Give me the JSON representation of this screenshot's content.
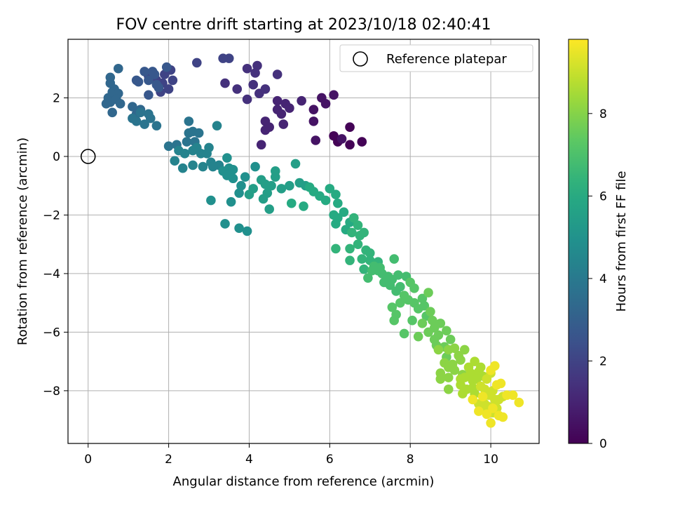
{
  "colormap": "viridis",
  "chart_data": {
    "type": "scatter",
    "title": "FOV centre drift starting at 2023/10/18 02:40:41",
    "xlabel": "Angular distance from reference (arcmin)",
    "ylabel": "Rotation from reference (arcmin)",
    "xlim": [
      -0.5,
      11.2
    ],
    "ylim": [
      -9.8,
      4.0
    ],
    "xticks": [
      0,
      2,
      4,
      6,
      8,
      10
    ],
    "yticks": [
      -8,
      -6,
      -4,
      -2,
      0,
      2
    ],
    "grid": true,
    "legend": {
      "position": "top-right",
      "entries": [
        "Reference platepar"
      ]
    },
    "reference_point": {
      "label": "Reference platepar",
      "x": 0,
      "y": 0
    },
    "colorbar": {
      "label": "Hours from first FF file",
      "range": [
        0,
        9.8
      ],
      "ticks": [
        0,
        2,
        4,
        6,
        8
      ]
    },
    "series": [
      {
        "c": 0.05,
        "points": [
          [
            6.5,
            1.0
          ],
          [
            6.8,
            0.5
          ],
          [
            6.5,
            0.4
          ],
          [
            6.2,
            0.5
          ],
          [
            6.1,
            0.7
          ]
        ]
      },
      {
        "c": 0.5,
        "points": [
          [
            6.1,
            2.1
          ],
          [
            5.8,
            2.0
          ],
          [
            5.6,
            1.6
          ],
          [
            5.6,
            1.2
          ],
          [
            5.9,
            1.8
          ],
          [
            5.65,
            0.55
          ],
          [
            6.3,
            0.6
          ]
        ]
      },
      {
        "c": 1.0,
        "points": [
          [
            4.7,
            1.9
          ],
          [
            4.9,
            1.8
          ],
          [
            4.7,
            1.6
          ],
          [
            4.8,
            1.45
          ],
          [
            5.0,
            1.65
          ],
          [
            5.3,
            1.9
          ],
          [
            4.85,
            1.1
          ],
          [
            4.4,
            1.2
          ],
          [
            4.5,
            1.0
          ],
          [
            4.4,
            0.9
          ],
          [
            4.3,
            0.4
          ]
        ]
      },
      {
        "c": 1.4,
        "points": [
          [
            4.2,
            3.1
          ],
          [
            3.95,
            3.0
          ],
          [
            4.15,
            2.85
          ],
          [
            4.7,
            2.8
          ],
          [
            4.1,
            2.45
          ],
          [
            4.25,
            2.15
          ],
          [
            4.4,
            2.3
          ],
          [
            3.95,
            1.95
          ],
          [
            3.4,
            2.5
          ],
          [
            3.7,
            2.3
          ]
        ]
      },
      {
        "c": 2.0,
        "points": [
          [
            3.5,
            3.35
          ],
          [
            3.35,
            3.35
          ],
          [
            2.7,
            3.2
          ],
          [
            1.9,
            2.8
          ],
          [
            2.05,
            2.95
          ],
          [
            2.1,
            2.6
          ],
          [
            1.85,
            2.5
          ],
          [
            2.0,
            2.3
          ],
          [
            1.8,
            2.2
          ],
          [
            1.7,
            2.6
          ],
          [
            1.5,
            2.75
          ]
        ]
      },
      {
        "c": 2.7,
        "points": [
          [
            1.4,
            2.9
          ],
          [
            1.6,
            2.9
          ],
          [
            1.5,
            2.6
          ],
          [
            1.7,
            2.45
          ],
          [
            1.2,
            2.6
          ],
          [
            1.25,
            2.55
          ],
          [
            1.5,
            2.1
          ],
          [
            1.75,
            2.35
          ],
          [
            1.65,
            2.8
          ],
          [
            1.95,
            3.05
          ]
        ]
      },
      {
        "c": 3.3,
        "points": [
          [
            0.55,
            2.7
          ],
          [
            0.75,
            3.0
          ],
          [
            0.55,
            2.5
          ],
          [
            0.65,
            2.3
          ],
          [
            0.5,
            2.0
          ],
          [
            0.6,
            2.2
          ],
          [
            0.75,
            2.15
          ],
          [
            0.55,
            1.85
          ],
          [
            0.45,
            1.8
          ],
          [
            0.7,
            1.95
          ],
          [
            0.8,
            1.8
          ],
          [
            0.6,
            1.5
          ],
          [
            1.1,
            1.7
          ],
          [
            1.3,
            1.6
          ],
          [
            1.2,
            1.45
          ]
        ]
      },
      {
        "c": 3.8,
        "points": [
          [
            1.1,
            1.3
          ],
          [
            1.2,
            1.2
          ],
          [
            1.4,
            1.1
          ],
          [
            1.5,
            1.45
          ],
          [
            1.7,
            1.05
          ],
          [
            1.55,
            1.3
          ],
          [
            1.3,
            1.5
          ],
          [
            2.5,
            1.2
          ],
          [
            2.5,
            0.8
          ],
          [
            2.6,
            0.85
          ],
          [
            2.75,
            0.8
          ],
          [
            2.65,
            0.5
          ],
          [
            2.45,
            0.5
          ],
          [
            2.2,
            0.4
          ],
          [
            2.0,
            0.35
          ]
        ]
      },
      {
        "c": 4.4,
        "points": [
          [
            2.25,
            0.2
          ],
          [
            2.4,
            0.1
          ],
          [
            2.6,
            0.2
          ],
          [
            2.8,
            0.1
          ],
          [
            2.95,
            0.1
          ],
          [
            2.15,
            -0.15
          ],
          [
            2.35,
            -0.4
          ],
          [
            2.6,
            -0.3
          ],
          [
            2.85,
            -0.35
          ],
          [
            3.05,
            -0.2
          ],
          [
            3.25,
            -0.3
          ],
          [
            3.1,
            -0.35
          ],
          [
            3.2,
            1.05
          ],
          [
            2.7,
            0.3
          ],
          [
            3.0,
            0.3
          ]
        ]
      },
      {
        "c": 4.9,
        "points": [
          [
            3.45,
            -0.05
          ],
          [
            3.5,
            -0.4
          ],
          [
            3.35,
            -0.5
          ],
          [
            3.45,
            -0.65
          ],
          [
            3.6,
            -0.45
          ],
          [
            3.6,
            -0.75
          ],
          [
            3.9,
            -0.7
          ],
          [
            3.8,
            -1.0
          ],
          [
            3.75,
            -1.25
          ],
          [
            3.05,
            -1.5
          ],
          [
            3.55,
            -1.55
          ],
          [
            3.4,
            -2.3
          ],
          [
            3.75,
            -2.45
          ],
          [
            3.95,
            -2.55
          ],
          [
            4.15,
            -0.35
          ]
        ]
      },
      {
        "c": 5.5,
        "points": [
          [
            4.3,
            -0.8
          ],
          [
            4.4,
            -0.95
          ],
          [
            4.55,
            -1.0
          ],
          [
            4.65,
            -0.7
          ],
          [
            4.45,
            -1.25
          ],
          [
            4.35,
            -1.45
          ],
          [
            4.5,
            -1.8
          ],
          [
            4.1,
            -1.1
          ],
          [
            4.0,
            -1.3
          ],
          [
            4.8,
            -1.1
          ],
          [
            4.65,
            -0.5
          ],
          [
            5.0,
            -1.0
          ],
          [
            5.15,
            -0.25
          ],
          [
            5.25,
            -0.9
          ],
          [
            5.4,
            -1.0
          ]
        ]
      },
      {
        "c": 6.0,
        "points": [
          [
            5.5,
            -1.05
          ],
          [
            5.6,
            -1.2
          ],
          [
            5.75,
            -1.35
          ],
          [
            5.9,
            -1.5
          ],
          [
            6.0,
            -1.1
          ],
          [
            6.15,
            -1.3
          ],
          [
            5.35,
            -1.7
          ],
          [
            5.05,
            -1.6
          ],
          [
            6.2,
            -1.6
          ],
          [
            6.1,
            -2.0
          ],
          [
            6.2,
            -2.1
          ],
          [
            6.35,
            -1.9
          ],
          [
            6.5,
            -2.25
          ],
          [
            6.4,
            -2.5
          ],
          [
            6.15,
            -2.3
          ]
        ]
      },
      {
        "c": 6.4,
        "points": [
          [
            6.6,
            -2.1
          ],
          [
            6.7,
            -2.35
          ],
          [
            6.55,
            -2.6
          ],
          [
            6.75,
            -2.7
          ],
          [
            6.85,
            -2.6
          ],
          [
            6.7,
            -3.0
          ],
          [
            6.5,
            -3.15
          ],
          [
            6.15,
            -3.15
          ],
          [
            6.9,
            -3.2
          ],
          [
            6.8,
            -3.5
          ],
          [
            7.0,
            -3.3
          ],
          [
            7.0,
            -3.55
          ],
          [
            6.5,
            -3.55
          ],
          [
            6.85,
            -3.85
          ],
          [
            7.2,
            -3.6
          ]
        ]
      },
      {
        "c": 6.8,
        "points": [
          [
            7.1,
            -3.75
          ],
          [
            7.2,
            -3.9
          ],
          [
            7.3,
            -4.0
          ],
          [
            6.95,
            -4.15
          ],
          [
            7.05,
            -3.9
          ],
          [
            7.25,
            -3.8
          ],
          [
            7.45,
            -4.1
          ],
          [
            7.35,
            -4.3
          ],
          [
            7.55,
            -4.2
          ],
          [
            7.6,
            -3.5
          ],
          [
            7.7,
            -4.05
          ],
          [
            7.5,
            -4.4
          ],
          [
            7.65,
            -4.6
          ],
          [
            7.75,
            -4.45
          ],
          [
            7.9,
            -4.1
          ]
        ]
      },
      {
        "c": 7.2,
        "points": [
          [
            8.0,
            -4.3
          ],
          [
            8.1,
            -4.5
          ],
          [
            7.85,
            -4.75
          ],
          [
            7.95,
            -4.9
          ],
          [
            7.55,
            -5.15
          ],
          [
            7.75,
            -5.0
          ],
          [
            7.65,
            -5.4
          ],
          [
            8.1,
            -5.0
          ],
          [
            8.2,
            -5.2
          ],
          [
            8.3,
            -4.85
          ],
          [
            8.35,
            -5.1
          ],
          [
            8.4,
            -5.45
          ],
          [
            8.05,
            -5.6
          ],
          [
            7.6,
            -5.6
          ],
          [
            7.85,
            -6.05
          ]
        ]
      },
      {
        "c": 7.6,
        "points": [
          [
            8.45,
            -4.65
          ],
          [
            8.5,
            -5.3
          ],
          [
            8.55,
            -5.6
          ],
          [
            8.6,
            -5.85
          ],
          [
            8.3,
            -5.7
          ],
          [
            8.45,
            -6.0
          ],
          [
            8.7,
            -6.1
          ],
          [
            8.75,
            -5.7
          ],
          [
            8.9,
            -5.95
          ],
          [
            9.0,
            -6.25
          ],
          [
            8.85,
            -6.5
          ],
          [
            8.2,
            -6.15
          ],
          [
            8.6,
            -6.25
          ],
          [
            8.65,
            -6.45
          ],
          [
            8.9,
            -6.85
          ]
        ]
      },
      {
        "c": 8.1,
        "points": [
          [
            8.7,
            -6.6
          ],
          [
            8.95,
            -6.6
          ],
          [
            9.1,
            -6.55
          ],
          [
            9.2,
            -6.8
          ],
          [
            9.05,
            -7.1
          ],
          [
            8.85,
            -7.05
          ],
          [
            8.75,
            -7.4
          ],
          [
            8.95,
            -7.2
          ],
          [
            9.25,
            -6.95
          ],
          [
            9.35,
            -6.6
          ],
          [
            9.1,
            -7.3
          ],
          [
            8.95,
            -7.55
          ],
          [
            8.75,
            -7.6
          ],
          [
            9.3,
            -7.45
          ],
          [
            8.95,
            -7.95
          ]
        ]
      },
      {
        "c": 8.6,
        "points": [
          [
            9.25,
            -7.8
          ],
          [
            9.45,
            -7.2
          ],
          [
            9.6,
            -7.0
          ],
          [
            9.5,
            -7.4
          ],
          [
            9.35,
            -7.55
          ],
          [
            9.4,
            -7.95
          ],
          [
            9.55,
            -7.65
          ],
          [
            9.7,
            -7.35
          ],
          [
            9.55,
            -7.9
          ],
          [
            9.3,
            -8.1
          ],
          [
            9.65,
            -7.6
          ],
          [
            9.75,
            -7.2
          ],
          [
            9.8,
            -7.5
          ],
          [
            9.25,
            -7.6
          ],
          [
            9.6,
            -8.1
          ]
        ]
      },
      {
        "c": 9.1,
        "points": [
          [
            9.75,
            -7.85
          ],
          [
            9.9,
            -7.6
          ],
          [
            10.0,
            -7.4
          ],
          [
            9.85,
            -7.95
          ],
          [
            9.95,
            -8.15
          ],
          [
            9.85,
            -8.45
          ],
          [
            9.7,
            -8.45
          ],
          [
            9.75,
            -8.65
          ],
          [
            10.05,
            -8.0
          ],
          [
            10.1,
            -8.3
          ],
          [
            9.95,
            -8.55
          ],
          [
            10.05,
            -8.75
          ],
          [
            10.2,
            -8.3
          ],
          [
            10.15,
            -8.6
          ],
          [
            10.3,
            -8.2
          ]
        ]
      },
      {
        "c": 9.6,
        "points": [
          [
            10.0,
            -7.3
          ],
          [
            10.1,
            -7.15
          ],
          [
            10.25,
            -7.75
          ],
          [
            10.4,
            -8.15
          ],
          [
            10.55,
            -8.15
          ],
          [
            10.7,
            -8.4
          ],
          [
            10.2,
            -8.85
          ],
          [
            10.3,
            -8.9
          ],
          [
            10.0,
            -9.1
          ],
          [
            9.7,
            -8.7
          ],
          [
            9.9,
            -8.8
          ],
          [
            10.05,
            -8.6
          ],
          [
            9.55,
            -8.3
          ],
          [
            9.8,
            -8.2
          ],
          [
            10.15,
            -7.8
          ]
        ]
      }
    ]
  }
}
